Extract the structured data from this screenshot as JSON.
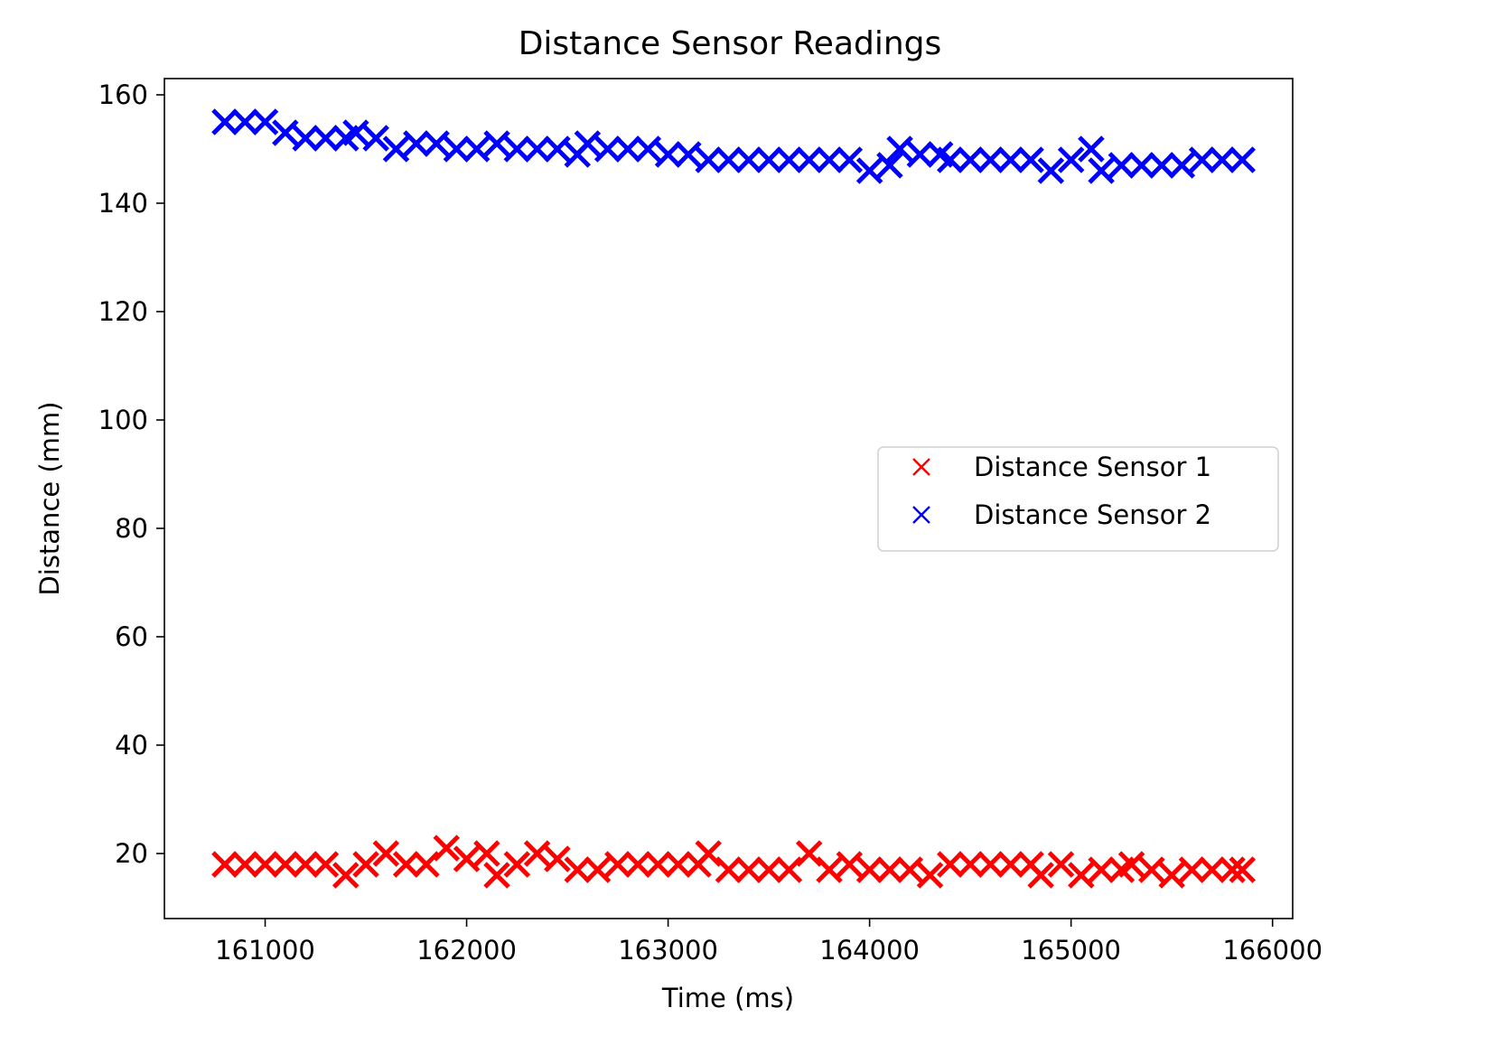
{
  "chart_data": {
    "type": "scatter",
    "title": "Distance Sensor Readings",
    "xlabel": "Time (ms)",
    "ylabel": "Distance (mm)",
    "xlim": [
      160500,
      166100
    ],
    "ylim": [
      8,
      163
    ],
    "xticks": [
      161000,
      162000,
      163000,
      164000,
      165000,
      166000
    ],
    "xtick_labels": [
      "161000",
      "162000",
      "163000",
      "164000",
      "165000",
      "166000"
    ],
    "yticks": [
      20,
      40,
      60,
      80,
      100,
      120,
      140,
      160
    ],
    "ytick_labels": [
      "20",
      "40",
      "60",
      "80",
      "100",
      "120",
      "140",
      "160"
    ],
    "grid": false,
    "marker": "x",
    "legend": {
      "position": "center-right",
      "entries": [
        "Distance Sensor 1",
        "Distance Sensor 2"
      ]
    },
    "series": [
      {
        "name": "Distance Sensor 1",
        "color": "#ff0000",
        "points": [
          [
            160800,
            18
          ],
          [
            160900,
            18
          ],
          [
            161000,
            18
          ],
          [
            161100,
            18
          ],
          [
            161200,
            18
          ],
          [
            161300,
            18
          ],
          [
            161400,
            16
          ],
          [
            161500,
            18
          ],
          [
            161600,
            20
          ],
          [
            161700,
            18
          ],
          [
            161800,
            18
          ],
          [
            161900,
            21
          ],
          [
            162000,
            19
          ],
          [
            162100,
            20
          ],
          [
            162150,
            16
          ],
          [
            162250,
            18
          ],
          [
            162350,
            20
          ],
          [
            162450,
            19
          ],
          [
            162550,
            17
          ],
          [
            162650,
            17
          ],
          [
            162750,
            18
          ],
          [
            162850,
            18
          ],
          [
            162950,
            18
          ],
          [
            163050,
            18
          ],
          [
            163150,
            18
          ],
          [
            163200,
            20
          ],
          [
            163300,
            17
          ],
          [
            163400,
            17
          ],
          [
            163500,
            17
          ],
          [
            163600,
            17
          ],
          [
            163700,
            20
          ],
          [
            163800,
            17
          ],
          [
            163900,
            18
          ],
          [
            164000,
            17
          ],
          [
            164100,
            17
          ],
          [
            164200,
            17
          ],
          [
            164300,
            16
          ],
          [
            164400,
            18
          ],
          [
            164500,
            18
          ],
          [
            164600,
            18
          ],
          [
            164700,
            18
          ],
          [
            164800,
            18
          ],
          [
            164850,
            16
          ],
          [
            164950,
            18
          ],
          [
            165050,
            16
          ],
          [
            165150,
            17
          ],
          [
            165250,
            17
          ],
          [
            165300,
            18
          ],
          [
            165400,
            17
          ],
          [
            165500,
            16
          ],
          [
            165600,
            17
          ],
          [
            165700,
            17
          ],
          [
            165800,
            17
          ],
          [
            165850,
            17
          ]
        ]
      },
      {
        "name": "Distance Sensor 2",
        "color": "#0000ff",
        "points": [
          [
            160800,
            155
          ],
          [
            160900,
            155
          ],
          [
            161000,
            155
          ],
          [
            161100,
            153
          ],
          [
            161200,
            152
          ],
          [
            161300,
            152
          ],
          [
            161400,
            152
          ],
          [
            161450,
            153
          ],
          [
            161550,
            152
          ],
          [
            161650,
            150
          ],
          [
            161750,
            151
          ],
          [
            161850,
            151
          ],
          [
            161950,
            150
          ],
          [
            162050,
            150
          ],
          [
            162150,
            151
          ],
          [
            162250,
            150
          ],
          [
            162350,
            150
          ],
          [
            162450,
            150
          ],
          [
            162550,
            149
          ],
          [
            162600,
            151
          ],
          [
            162700,
            150
          ],
          [
            162800,
            150
          ],
          [
            162900,
            150
          ],
          [
            163000,
            149
          ],
          [
            163100,
            149
          ],
          [
            163200,
            148
          ],
          [
            163300,
            148
          ],
          [
            163400,
            148
          ],
          [
            163500,
            148
          ],
          [
            163600,
            148
          ],
          [
            163700,
            148
          ],
          [
            163800,
            148
          ],
          [
            163900,
            148
          ],
          [
            164000,
            146
          ],
          [
            164100,
            147
          ],
          [
            164150,
            150
          ],
          [
            164250,
            149
          ],
          [
            164350,
            149
          ],
          [
            164400,
            148
          ],
          [
            164500,
            148
          ],
          [
            164600,
            148
          ],
          [
            164700,
            148
          ],
          [
            164800,
            148
          ],
          [
            164900,
            146
          ],
          [
            165000,
            148
          ],
          [
            165100,
            150
          ],
          [
            165150,
            146
          ],
          [
            165250,
            147
          ],
          [
            165350,
            147
          ],
          [
            165450,
            147
          ],
          [
            165550,
            147
          ],
          [
            165650,
            148
          ],
          [
            165750,
            148
          ],
          [
            165850,
            148
          ]
        ]
      }
    ]
  }
}
